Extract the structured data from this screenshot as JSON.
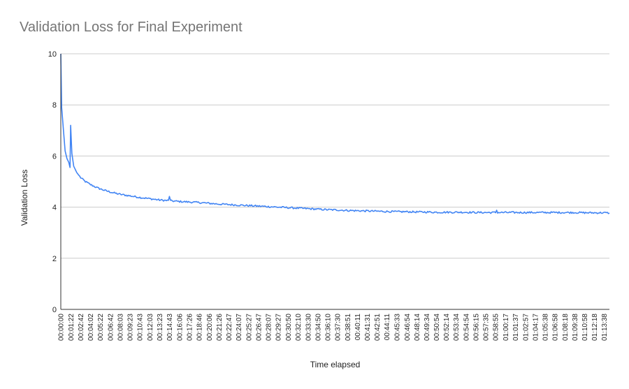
{
  "chart_data": {
    "type": "line",
    "title": "Validation Loss for Final Experiment",
    "xlabel": "Time elapsed",
    "ylabel": "Validation Loss",
    "ylim": [
      0,
      10
    ],
    "y_ticks": [
      "0",
      "2",
      "4",
      "6",
      "8",
      "10"
    ],
    "grid": true,
    "legend": "none",
    "line_color": "#4285f4",
    "x_start": "00:00:00",
    "x_end": "01:14:20",
    "x_tick_labels": [
      "00:00:00",
      "00:01:22",
      "00:02:42",
      "00:04:02",
      "00:05:22",
      "00:06:42",
      "00:08:03",
      "00:09:23",
      "00:10:43",
      "00:12:03",
      "00:13:23",
      "00:14:43",
      "00:16:06",
      "00:17:26",
      "00:18:46",
      "00:20:06",
      "00:21:26",
      "00:22:47",
      "00:24:07",
      "00:25:27",
      "00:26:47",
      "00:28:07",
      "00:29:27",
      "00:30:50",
      "00:32:10",
      "00:33:30",
      "00:34:50",
      "00:36:10",
      "00:37:30",
      "00:38:51",
      "00:40:11",
      "00:41:31",
      "00:42:51",
      "00:44:11",
      "00:45:33",
      "00:46:54",
      "00:48:14",
      "00:49:34",
      "00:50:54",
      "00:52:14",
      "00:53:34",
      "00:54:54",
      "00:56:15",
      "00:57:35",
      "00:58:55",
      "01:00:17",
      "01:01:37",
      "01:02:57",
      "01:04:17",
      "01:05:38",
      "01:06:58",
      "01:08:18",
      "01:09:38",
      "01:10:58",
      "01:12:18",
      "01:13:38"
    ],
    "series": [
      {
        "points": [
          [
            "00:00:00",
            10.0
          ],
          [
            "00:00:07",
            7.9
          ],
          [
            "00:00:20",
            7.1
          ],
          [
            "00:00:35",
            6.2
          ],
          [
            "00:00:50",
            5.9
          ],
          [
            "00:01:05",
            5.75
          ],
          [
            "00:01:15",
            5.55
          ],
          [
            "00:01:20",
            7.2
          ],
          [
            "00:01:30",
            6.1
          ],
          [
            "00:01:45",
            5.6
          ],
          [
            "00:02:10",
            5.35
          ],
          [
            "00:02:42",
            5.15
          ],
          [
            "00:03:20",
            5.0
          ],
          [
            "00:04:02",
            4.88
          ],
          [
            "00:05:00",
            4.75
          ],
          [
            "00:06:00",
            4.65
          ],
          [
            "00:07:00",
            4.57
          ],
          [
            "00:08:03",
            4.5
          ],
          [
            "00:09:23",
            4.44
          ],
          [
            "00:10:43",
            4.38
          ],
          [
            "00:12:03",
            4.33
          ],
          [
            "00:13:23",
            4.28
          ],
          [
            "00:14:43",
            4.25
          ],
          [
            "00:16:06",
            4.22
          ],
          [
            "00:17:26",
            4.2
          ],
          [
            "00:18:46",
            4.18
          ],
          [
            "00:20:06",
            4.15
          ],
          [
            "00:21:26",
            4.12
          ],
          [
            "00:22:47",
            4.1
          ],
          [
            "00:24:07",
            4.08
          ],
          [
            "00:25:27",
            4.06
          ],
          [
            "00:26:47",
            4.04
          ],
          [
            "00:28:07",
            4.02
          ],
          [
            "00:29:27",
            4.0
          ],
          [
            "00:30:50",
            3.98
          ],
          [
            "00:32:10",
            3.96
          ],
          [
            "00:33:30",
            3.94
          ],
          [
            "00:34:50",
            3.92
          ],
          [
            "00:36:10",
            3.9
          ],
          [
            "00:37:30",
            3.89
          ],
          [
            "00:38:51",
            3.87
          ],
          [
            "00:40:11",
            3.86
          ],
          [
            "00:41:31",
            3.85
          ],
          [
            "00:42:51",
            3.84
          ],
          [
            "00:44:11",
            3.83
          ],
          [
            "00:45:33",
            3.82
          ],
          [
            "00:46:54",
            3.82
          ],
          [
            "00:48:14",
            3.81
          ],
          [
            "00:49:34",
            3.81
          ],
          [
            "00:50:54",
            3.8
          ],
          [
            "00:52:14",
            3.8
          ],
          [
            "00:53:34",
            3.8
          ],
          [
            "00:54:54",
            3.8
          ],
          [
            "00:56:15",
            3.79
          ],
          [
            "00:57:35",
            3.79
          ],
          [
            "00:58:55",
            3.79
          ],
          [
            "01:00:17",
            3.79
          ],
          [
            "01:01:37",
            3.79
          ],
          [
            "01:02:57",
            3.79
          ],
          [
            "01:04:17",
            3.79
          ],
          [
            "01:05:38",
            3.79
          ],
          [
            "01:06:58",
            3.79
          ],
          [
            "01:08:18",
            3.79
          ],
          [
            "01:09:38",
            3.79
          ],
          [
            "01:10:58",
            3.78
          ],
          [
            "01:12:18",
            3.78
          ],
          [
            "01:13:38",
            3.78
          ],
          [
            "01:14:20",
            3.77
          ]
        ],
        "spikes": [
          [
            "00:14:43",
            4.42
          ],
          [
            "00:59:00",
            3.88
          ]
        ]
      }
    ]
  }
}
